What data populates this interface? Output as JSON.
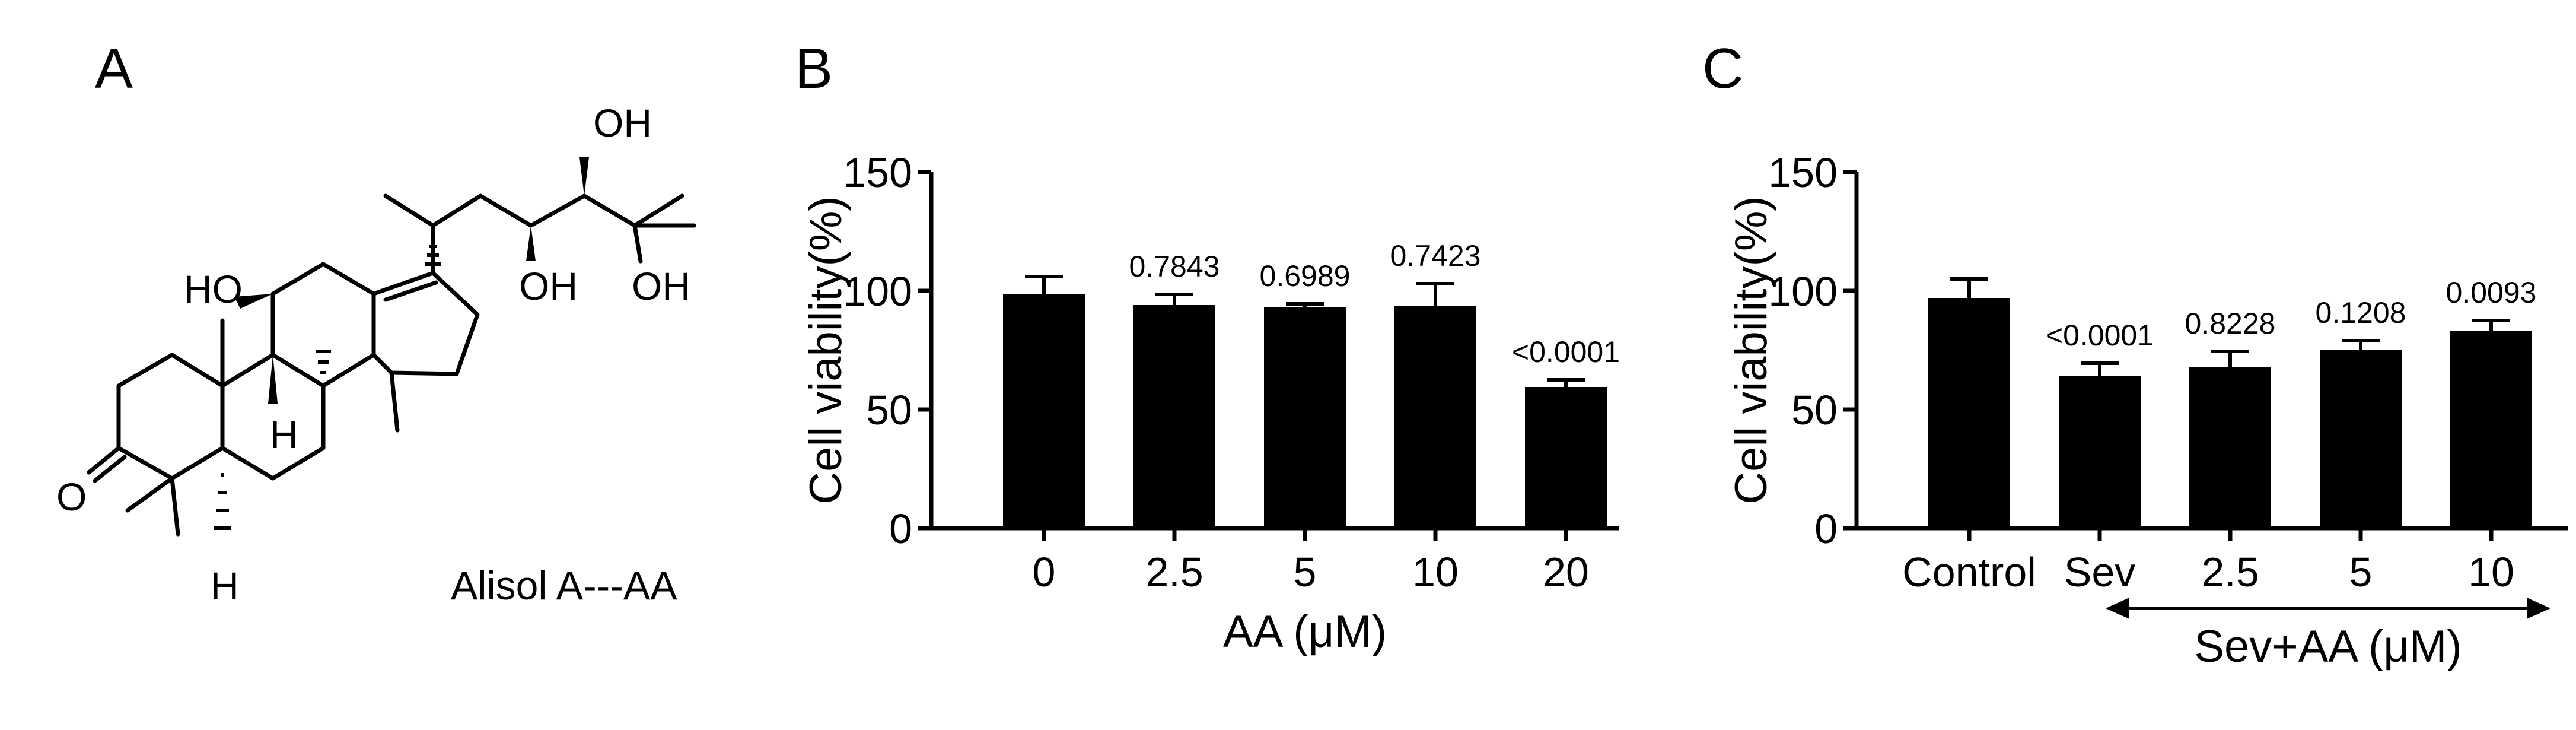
{
  "panel_a": {
    "label": "A",
    "compound_label": "Alisol A---AA",
    "atom_labels": {
      "oh_top": "OH",
      "ho_left": "HO",
      "oh_mid": "OH",
      "oh_right": "OH",
      "h_mid": "H",
      "h_bottom": "H",
      "o_ketone": "O"
    }
  },
  "chart_data": [
    {
      "panel": "B",
      "type": "bar",
      "title": "",
      "ylabel": "Cell viability(%)",
      "xlabel": "AA (μM)",
      "ylim": [
        0,
        150
      ],
      "yticks": [
        "0",
        "50",
        "100",
        "150"
      ],
      "categories": [
        "0",
        "2.5",
        "5",
        "10",
        "20"
      ],
      "values": [
        98.5,
        94,
        93,
        93.5,
        59.5
      ],
      "errors": [
        7.5,
        4.5,
        1.5,
        9.5,
        3
      ],
      "annotations": [
        "",
        "0.7843",
        "0.6989",
        "0.7423",
        "<0.0001"
      ],
      "bar_color": "#000000",
      "grid": false
    },
    {
      "panel": "C",
      "type": "bar",
      "title": "",
      "ylabel": "Cell viability(%)",
      "xlabel": "Sev+AA (μM)",
      "ylim": [
        0,
        150
      ],
      "yticks": [
        "0",
        "50",
        "100",
        "150"
      ],
      "categories": [
        "Control",
        "Sev",
        "2.5",
        "5",
        "10"
      ],
      "values": [
        97,
        64,
        68,
        75,
        83
      ],
      "errors": [
        8,
        5.5,
        6.5,
        4,
        4.5
      ],
      "annotations": [
        "",
        "<0.0001",
        "0.8228",
        "0.1208",
        "0.0093"
      ],
      "bar_color": "#000000",
      "grid": false
    }
  ]
}
